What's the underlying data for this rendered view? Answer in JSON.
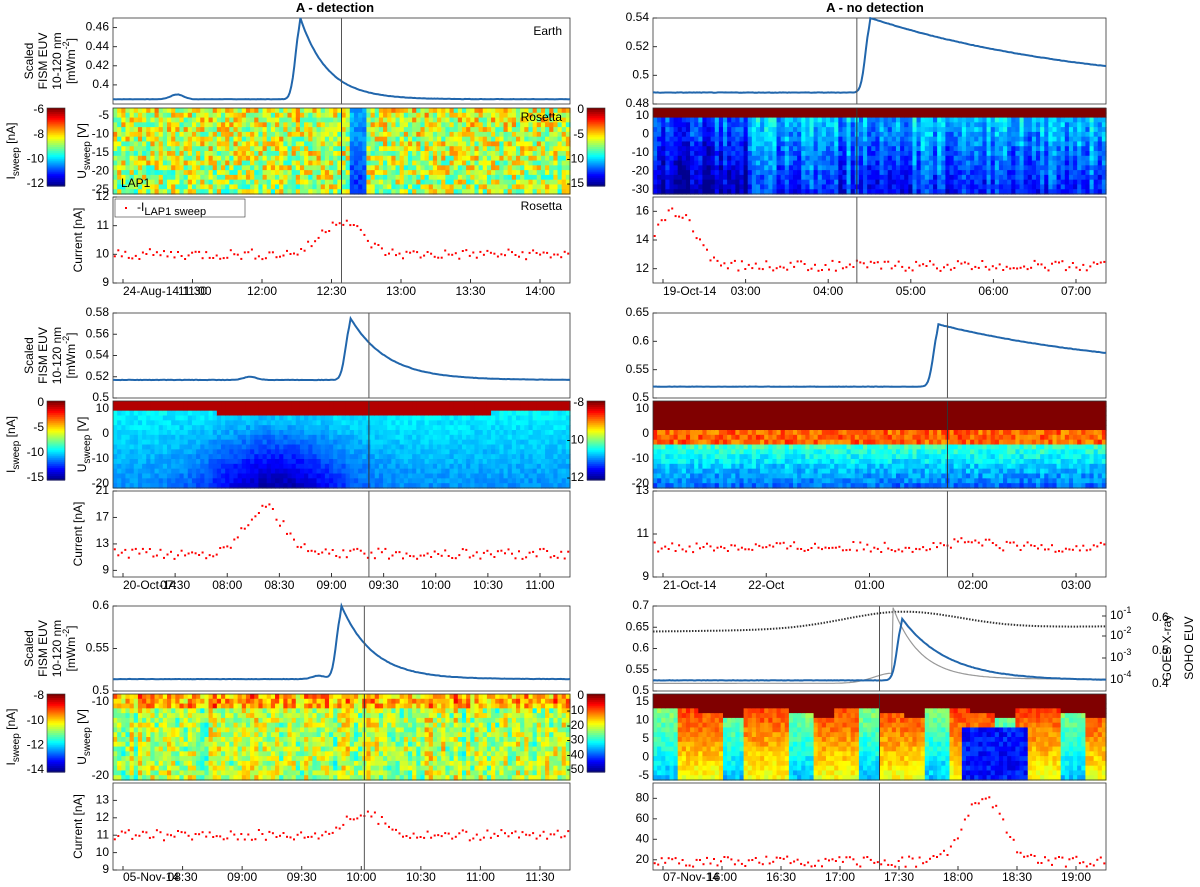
{
  "titles": {
    "left": "A - detection",
    "right": "A - no detection"
  },
  "labels": {
    "euv_line1": "Scaled",
    "euv_line2": "FISM EUV",
    "euv_line3": "10-120 nm",
    "euv_unit": "[mWm",
    "euv_unit_exp": "-2",
    "euv_unit_close": "]",
    "usweep_u": "U",
    "usweep_sub": "sweep",
    "usweep_unit": " [V]",
    "isweep_i": "I",
    "isweep_sub": "sweep",
    "isweep_unit": " [nA]",
    "current": "Current [nA]",
    "earth": "Earth",
    "rosetta": "Rosetta",
    "lap1": "LAP1",
    "legend_prefix": "-I",
    "legend_sub": "LAP1 sweep",
    "goes": "GOES X-ray",
    "soho": "SOHO EUV",
    "goes_ticks": [
      {
        "base": "10",
        "exp": "-1"
      },
      {
        "base": "10",
        "exp": "-2"
      },
      {
        "base": "10",
        "exp": "-3"
      },
      {
        "base": "10",
        "exp": "-4"
      }
    ]
  },
  "colors": {
    "euv_line": "#2166ac",
    "current_dots": "#ff0000",
    "vline": "#555555",
    "goes_line": "#333333",
    "soho_line": "#999999",
    "jet": [
      "#00008f",
      "#0000ff",
      "#0080ff",
      "#00ffff",
      "#80ff80",
      "#ffff00",
      "#ff8000",
      "#ff0000",
      "#800000"
    ]
  },
  "chart_data": [
    {
      "panel": "left-1",
      "type": "line",
      "euv": {
        "ylim": [
          0.38,
          0.47
        ],
        "yticks": [
          "0.46",
          "0.44",
          "0.42",
          "0.4"
        ],
        "base": 0.385,
        "peak": 0.47,
        "peak_pos": 0.41,
        "pre_bumps": [
          [
            0.14,
            0.005
          ]
        ],
        "decay": 0.06,
        "tail": 0.385
      },
      "sweep": {
        "yticks": [
          "-5",
          "-10",
          "-15",
          "-20",
          "-25"
        ],
        "cbar_ticks": [
          "-6",
          "-8",
          "-10",
          "-12"
        ],
        "style": "noise-flare"
      },
      "current": {
        "ylim": [
          9,
          12
        ],
        "yticks": [
          "12",
          "11",
          "10",
          "9"
        ],
        "base": 10.0,
        "jump": 11.2,
        "jump_pos": 0.5
      },
      "xticks": [
        "24-Aug-14 11:00",
        "11:30",
        "12:00",
        "12:30",
        "13:00",
        "13:30",
        "14:00"
      ],
      "vline": 0.5
    },
    {
      "panel": "right-1",
      "type": "line",
      "euv": {
        "ylim": [
          0.48,
          0.54
        ],
        "yticks": [
          "0.54",
          "0.52",
          "0.5",
          "0.48"
        ],
        "base": 0.488,
        "peak": 0.54,
        "peak_pos": 0.48,
        "pre_bumps": [],
        "decay": 0.5,
        "tail": 0.488
      },
      "sweep": {
        "yticks": [
          "10",
          "0",
          "-10",
          "-20",
          "-30"
        ],
        "cbar_ticks": [
          "0",
          "-5",
          "-10",
          "-15"
        ],
        "style": "saturated-top"
      },
      "current": {
        "ylim": [
          11,
          17
        ],
        "yticks": [
          "16",
          "14",
          "12"
        ],
        "base": 12.2,
        "jump": 16.0,
        "jump_pos": 0.05
      },
      "xticks": [
        "19-Oct-14",
        "03:00",
        "04:00",
        "05:00",
        "06:00",
        "07:00"
      ],
      "vline": 0.45
    },
    {
      "panel": "left-2",
      "type": "line",
      "euv": {
        "ylim": [
          0.5,
          0.58
        ],
        "yticks": [
          "0.58",
          "0.56",
          "0.54",
          "0.52",
          "0.5"
        ],
        "base": 0.517,
        "peak": 0.575,
        "peak_pos": 0.52,
        "pre_bumps": [
          [
            0.3,
            0.003
          ],
          [
            0.75,
            0.004
          ]
        ],
        "decay": 0.08,
        "tail": 0.517
      },
      "sweep": {
        "yticks": [
          "10",
          "0",
          "-10",
          "-20"
        ],
        "cbar_ticks": [
          "0",
          "-5",
          "-10",
          "-15"
        ],
        "style": "dark-bowl"
      },
      "current": {
        "ylim": [
          8,
          21
        ],
        "yticks": [
          "21",
          "17",
          "13",
          "9"
        ],
        "base": 11.5,
        "jump": 18.5,
        "jump_pos": 0.33
      },
      "xticks": [
        "20-Oct-14",
        "07:30",
        "08:00",
        "08:30",
        "09:00",
        "09:30",
        "10:00",
        "10:30",
        "11:00"
      ],
      "vline": 0.56
    },
    {
      "panel": "right-2",
      "type": "line",
      "euv": {
        "ylim": [
          0.5,
          0.65
        ],
        "yticks": [
          "0.65",
          "0.6",
          "0.55",
          "0.5"
        ],
        "base": 0.52,
        "peak": 0.63,
        "peak_pos": 0.63,
        "pre_bumps": [],
        "decay": 0.45,
        "tail": 0.54
      },
      "sweep": {
        "yticks": [
          "10",
          "0",
          "-10",
          "-20"
        ],
        "cbar_ticks": [
          "-8",
          "-10",
          "-12"
        ],
        "style": "saturated-top-2"
      },
      "current": {
        "ylim": [
          9,
          13
        ],
        "yticks": [
          "13",
          "11",
          "9"
        ],
        "base": 10.4,
        "jump": 10.6,
        "jump_pos": 0.7
      },
      "xticks": [
        "21-Oct-14",
        "22-Oct",
        "01:00",
        "02:00",
        "03:00"
      ],
      "vline": 0.65
    },
    {
      "panel": "left-3",
      "type": "line",
      "euv": {
        "ylim": [
          0.5,
          0.6
        ],
        "yticks": [
          "0.6",
          "0.55",
          "0.5"
        ],
        "base": 0.514,
        "peak": 0.6,
        "peak_pos": 0.5,
        "pre_bumps": [
          [
            0.45,
            0.004
          ]
        ],
        "decay": 0.07,
        "tail": 0.514
      },
      "sweep": {
        "yticks": [
          "-10",
          "-20"
        ],
        "cbar_ticks": [
          "-8",
          "-10",
          "-12",
          "-14"
        ],
        "style": "noise-stripes"
      },
      "current": {
        "ylim": [
          9,
          14
        ],
        "yticks": [
          "13",
          "12",
          "11",
          "10",
          "9"
        ],
        "base": 11.0,
        "jump": 12.2,
        "jump_pos": 0.55
      },
      "xticks": [
        "05-Nov-14",
        "08:30",
        "09:00",
        "09:30",
        "10:00",
        "10:30",
        "11:00",
        "11:30"
      ],
      "vline": 0.55
    },
    {
      "panel": "right-3",
      "type": "line",
      "euv": {
        "ylim": [
          0.5,
          0.7
        ],
        "yticks": [
          "0.7",
          "0.65",
          "0.6",
          "0.55",
          "0.5"
        ],
        "base": 0.525,
        "peak": 0.67,
        "peak_pos": 0.55,
        "pre_bumps": [],
        "decay": 0.1,
        "tail": 0.525
      },
      "sweep": {
        "yticks": [
          "15",
          "10",
          "5",
          "0",
          "-5"
        ],
        "cbar_ticks": [
          "0",
          "-10",
          "-20",
          "-30",
          "-40",
          "-50"
        ],
        "style": "blocks"
      },
      "current": {
        "ylim": [
          10,
          95
        ],
        "yticks": [
          "80",
          "60",
          "40",
          "20"
        ],
        "base": 18,
        "jump": 80,
        "jump_pos": 0.73
      },
      "xticks": [
        "07-Nov-14",
        "16:00",
        "16:30",
        "17:00",
        "17:30",
        "18:00",
        "18:30",
        "19:00"
      ],
      "vline": 0.5,
      "right_axis": {
        "goes_ticks_count": 4,
        "soho_ticks": [
          "0.6",
          "0.5",
          "0.4"
        ]
      }
    }
  ]
}
